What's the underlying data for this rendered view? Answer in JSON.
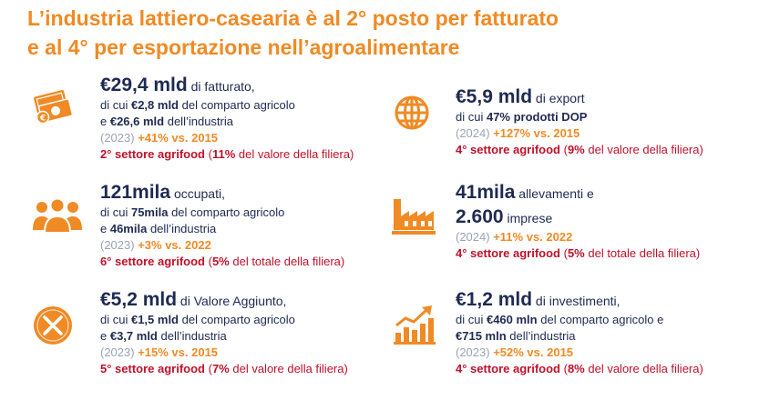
{
  "title": {
    "line1": "L’industria lattiero-casearia è al 2° posto per fatturato",
    "line2": "e al 4° per  esportazione nell’agroalimentare"
  },
  "icons": [
    "money-icon",
    "globe-icon",
    "people-icon",
    "factory-icon",
    "no-entry-icon",
    "growth-chart-icon"
  ],
  "colors": {
    "title_orange": "#F08A24",
    "navy": "#1E2A52",
    "red": "#C0102A",
    "gray": "#9AA3B5"
  },
  "blocks": {
    "fatturato": {
      "big": "€29,4 mld",
      "big_suffix": " di fatturato,",
      "l2_pre": "di cui ",
      "l2_b": "€2,8 mld",
      "l2_post": " del comparto agricolo",
      "l3_pre": "e ",
      "l3_b": "€26,6 mld",
      "l3_post": " dell’industria",
      "year": "(2023) ",
      "trend": "+41% vs. 2015",
      "rank_b": "2° settore agrifood",
      "rank_pre": " (",
      "rank_pct": "11%",
      "rank_post": " del valore della filiera)"
    },
    "export": {
      "big": "€5,9 mld",
      "big_suffix": " di export",
      "l2_pre": "di cui ",
      "l2_b": "47% prodotti DOP",
      "year": "(2024) ",
      "trend": "+127% vs. 2015",
      "rank_b": "4° settore agrifood",
      "rank_pre": " (",
      "rank_pct": "9%",
      "rank_post": " del valore della filiera)"
    },
    "occupati": {
      "big": "121mila",
      "big_suffix": " occupati,",
      "l2_pre": "di cui ",
      "l2_b": "75mila",
      "l2_post": " del comparto agricolo",
      "l3_pre": "e ",
      "l3_b": "46mila",
      "l3_post": " dell’industria",
      "year": "(2023) ",
      "trend": "+3% vs. 2022",
      "rank_b": "6° settore agrifood",
      "rank_pre": " (",
      "rank_pct": "5%",
      "rank_post": " del totale della filiera)"
    },
    "allevamenti": {
      "big": "41mila",
      "big_suffix": " allevamenti e",
      "big2": "2.600",
      "big2_suffix": " imprese",
      "year": "(2024) ",
      "trend": "+11% vs. 2022",
      "rank_b": "4° settore agrifood",
      "rank_pre": " (",
      "rank_pct": "5%",
      "rank_post": " del totale della filiera)"
    },
    "valore": {
      "big": "€5,2 mld",
      "big_suffix": " di Valore Aggiunto,",
      "l2_pre": "di cui ",
      "l2_b": "€1,5 mld",
      "l2_post": " del comparto agricolo",
      "l3_pre": "e ",
      "l3_b": "€3,7 mld",
      "l3_post": " dell’industria",
      "year": "(2023) ",
      "trend": "+15% vs. 2015",
      "rank_b": "5° settore agrifood",
      "rank_pre": " (",
      "rank_pct": "7%",
      "rank_post": " del valore della filiera)"
    },
    "investimenti": {
      "big": "€1,2 mld",
      "big_suffix": " di investimenti,",
      "l2_pre": "di cui ",
      "l2_b": "€460 mln",
      "l2_post": " del comparto agricolo e",
      "l3_b": "€715 mln",
      "l3_post": " dell’industria",
      "year": "(2023) ",
      "trend": "+52% vs. 2015",
      "rank_b": "4° settore agrifood",
      "rank_pre": " (",
      "rank_pct": "8%",
      "rank_post": " del valore della filiera)"
    }
  }
}
